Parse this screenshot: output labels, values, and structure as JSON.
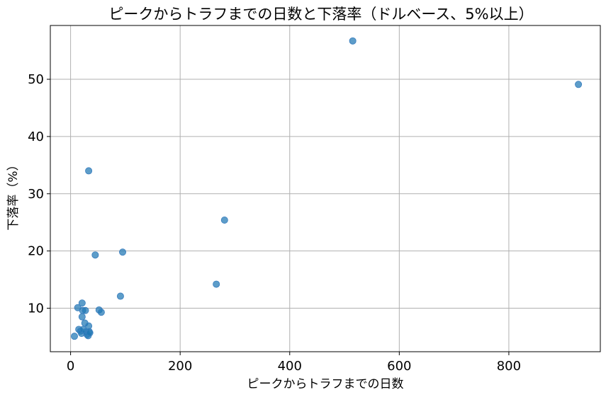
{
  "chart_data": {
    "type": "scatter",
    "title": "ピークからトラフまでの日数と下落率（ドルベース、5%以上）",
    "xlabel": "ピークからトラフまでの日数",
    "ylabel": "下落率（%）",
    "xlim": [
      -37,
      967
    ],
    "ylim": [
      2.4,
      59.4
    ],
    "xticks": [
      0,
      200,
      400,
      600,
      800
    ],
    "yticks": [
      10,
      20,
      30,
      40,
      50
    ],
    "grid": true,
    "point_color": "#1f77b4",
    "points": [
      {
        "x": 7,
        "y": 5.1
      },
      {
        "x": 13,
        "y": 10.1
      },
      {
        "x": 15,
        "y": 6.3
      },
      {
        "x": 18,
        "y": 6.0
      },
      {
        "x": 20,
        "y": 5.6
      },
      {
        "x": 21,
        "y": 8.5
      },
      {
        "x": 21,
        "y": 10.9
      },
      {
        "x": 22,
        "y": 9.6
      },
      {
        "x": 23,
        "y": 6.3
      },
      {
        "x": 26,
        "y": 7.4
      },
      {
        "x": 27,
        "y": 9.6
      },
      {
        "x": 28,
        "y": 5.9
      },
      {
        "x": 30,
        "y": 5.4
      },
      {
        "x": 32,
        "y": 5.2
      },
      {
        "x": 33,
        "y": 6.9
      },
      {
        "x": 33,
        "y": 34.0
      },
      {
        "x": 34,
        "y": 5.9
      },
      {
        "x": 35,
        "y": 5.7
      },
      {
        "x": 45,
        "y": 19.3
      },
      {
        "x": 52,
        "y": 9.7
      },
      {
        "x": 56,
        "y": 9.3
      },
      {
        "x": 91,
        "y": 12.1
      },
      {
        "x": 95,
        "y": 19.8
      },
      {
        "x": 266,
        "y": 14.2
      },
      {
        "x": 281,
        "y": 25.4
      },
      {
        "x": 515,
        "y": 56.7
      },
      {
        "x": 927,
        "y": 49.1
      }
    ]
  }
}
